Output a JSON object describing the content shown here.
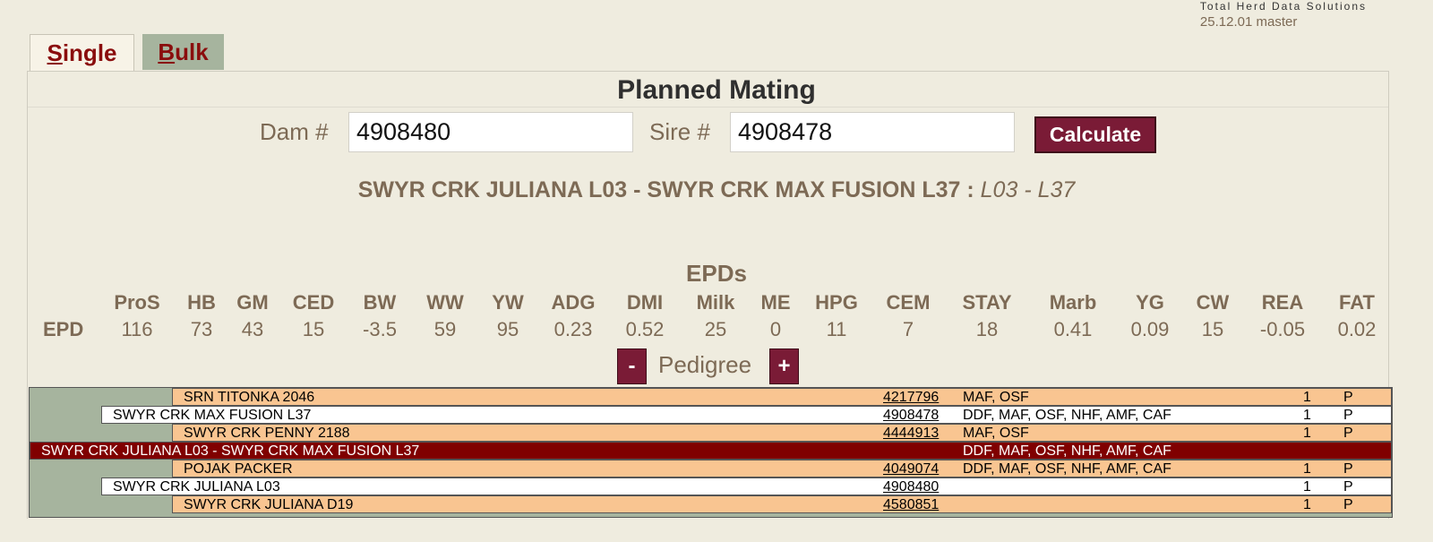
{
  "brand": {
    "company": "Total Herd Data Solutions",
    "version": "25.12.01 master"
  },
  "tabs": [
    {
      "accel": "S",
      "rest": "ingle",
      "active": true
    },
    {
      "accel": "B",
      "rest": "ulk",
      "active": false
    }
  ],
  "title": "Planned Mating",
  "form": {
    "dam_label": "Dam #",
    "dam_value": "4908480",
    "sire_label": "Sire #",
    "sire_value": "4908478",
    "calculate_label": "Calculate"
  },
  "mating": {
    "names": "SWYR CRK JULIANA L03 - SWYR CRK MAX FUSION L37 :",
    "codes": "L03 - L37"
  },
  "epds": {
    "title": "EPDs",
    "row_label": "EPD",
    "columns": [
      {
        "name": "ProS",
        "value": "116"
      },
      {
        "name": "HB",
        "value": "73"
      },
      {
        "name": "GM",
        "value": "43"
      },
      {
        "name": "CED",
        "value": "15"
      },
      {
        "name": "BW",
        "value": "-3.5"
      },
      {
        "name": "WW",
        "value": "59"
      },
      {
        "name": "YW",
        "value": "95"
      },
      {
        "name": "ADG",
        "value": "0.23"
      },
      {
        "name": "DMI",
        "value": "0.52"
      },
      {
        "name": "Milk",
        "value": "25"
      },
      {
        "name": "ME",
        "value": "0"
      },
      {
        "name": "HPG",
        "value": "11"
      },
      {
        "name": "CEM",
        "value": "7"
      },
      {
        "name": "STAY",
        "value": "18"
      },
      {
        "name": "Marb",
        "value": "0.41"
      },
      {
        "name": "YG",
        "value": "0.09"
      },
      {
        "name": "CW",
        "value": "15"
      },
      {
        "name": "REA",
        "value": "-0.05"
      },
      {
        "name": "FAT",
        "value": "0.02"
      }
    ]
  },
  "pedigree": {
    "label": "Pedigree",
    "minus": "-",
    "plus": "+",
    "rows": [
      {
        "name": "SRN TITONKA 2046",
        "reg": "4217796",
        "flags": "MAF, OSF",
        "count": "1",
        "status": "P"
      },
      {
        "name": "SWYR CRK MAX FUSION L37",
        "reg": "4908478",
        "flags": "DDF, MAF, OSF, NHF, AMF, CAF",
        "count": "1",
        "status": "P"
      },
      {
        "name": "SWYR CRK PENNY 2188",
        "reg": "4444913",
        "flags": "MAF, OSF",
        "count": "1",
        "status": "P"
      },
      {
        "name": "SWYR CRK JULIANA L03 - SWYR CRK MAX FUSION L37",
        "reg": "",
        "flags": "DDF, MAF, OSF, NHF, AMF, CAF",
        "count": "",
        "status": ""
      },
      {
        "name": "POJAK PACKER",
        "reg": "4049074",
        "flags": "DDF, MAF, OSF, NHF, AMF, CAF",
        "count": "1",
        "status": "P"
      },
      {
        "name": "SWYR CRK JULIANA L03",
        "reg": "4908480",
        "flags": "",
        "count": "1",
        "status": "P"
      },
      {
        "name": "SWYR CRK JULIANA D19",
        "reg": "4580851",
        "flags": "",
        "count": "1",
        "status": "P"
      }
    ]
  }
}
